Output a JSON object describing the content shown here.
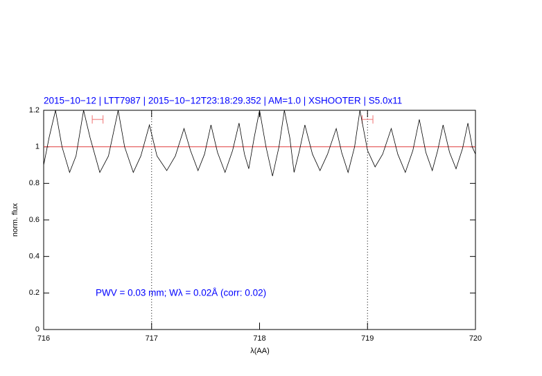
{
  "chart_data": {
    "type": "line",
    "title": "2015−10−12 | LTT7987 | 2015−10−12T23:18:29.352 | AM=1.0 | XSHOOTER | S5.0x11",
    "xlabel": "λ(AA)",
    "ylabel": "norm. flux",
    "annotation": "PWV = 0.03 mm; Wλ = 0.02Å (corr: 0.02)",
    "xlim": [
      716,
      720
    ],
    "xticks": [
      716,
      717,
      718,
      719,
      720
    ],
    "ylim": [
      0,
      1.2
    ],
    "yticks": [
      0,
      0.2,
      0.4,
      0.6,
      0.8,
      1,
      1.2
    ],
    "hline": 1,
    "hline_color": "#e04040",
    "vlines": [
      717,
      719
    ],
    "intervals": [
      {
        "x": [
          716.45,
          716.55
        ],
        "y": 1.15
      },
      {
        "x": [
          718.95,
          719.05
        ],
        "y": 1.15
      }
    ],
    "interval_color": "#f07070",
    "series": [
      {
        "color": "#000000",
        "x": [
          716.0,
          716.05,
          716.11,
          716.17,
          716.24,
          716.3,
          716.37,
          716.43,
          716.52,
          716.6,
          716.69,
          716.75,
          716.83,
          716.9,
          716.98,
          717.05,
          717.14,
          717.22,
          717.3,
          717.36,
          717.43,
          717.49,
          717.55,
          717.61,
          717.68,
          717.75,
          717.81,
          717.86,
          717.9,
          717.95,
          718.0,
          718.06,
          718.12,
          718.18,
          718.23,
          718.28,
          718.32,
          718.37,
          718.42,
          718.49,
          718.56,
          718.63,
          718.71,
          718.76,
          718.82,
          718.88,
          718.93,
          719.0,
          719.07,
          719.14,
          719.22,
          719.28,
          719.35,
          719.42,
          719.48,
          719.54,
          719.6,
          719.65,
          719.7,
          719.76,
          719.82,
          719.88,
          719.93,
          719.97,
          720.0
        ],
        "values": [
          0.9,
          1.05,
          1.2,
          1.0,
          0.86,
          0.95,
          1.2,
          1.05,
          0.86,
          0.95,
          1.2,
          1.0,
          0.86,
          0.95,
          1.12,
          0.95,
          0.87,
          0.95,
          1.1,
          0.98,
          0.87,
          0.96,
          1.12,
          0.97,
          0.86,
          0.98,
          1.13,
          0.96,
          0.88,
          1.05,
          1.2,
          1.0,
          0.84,
          1.0,
          1.2,
          1.05,
          0.86,
          0.98,
          1.12,
          0.96,
          0.87,
          0.96,
          1.1,
          0.97,
          0.86,
          1.0,
          1.2,
          0.98,
          0.89,
          0.96,
          1.1,
          0.96,
          0.86,
          0.98,
          1.15,
          0.97,
          0.87,
          0.98,
          1.12,
          0.97,
          0.88,
          0.99,
          1.13,
          1.0,
          0.96
        ]
      }
    ],
    "title_color": "#0000ff"
  }
}
